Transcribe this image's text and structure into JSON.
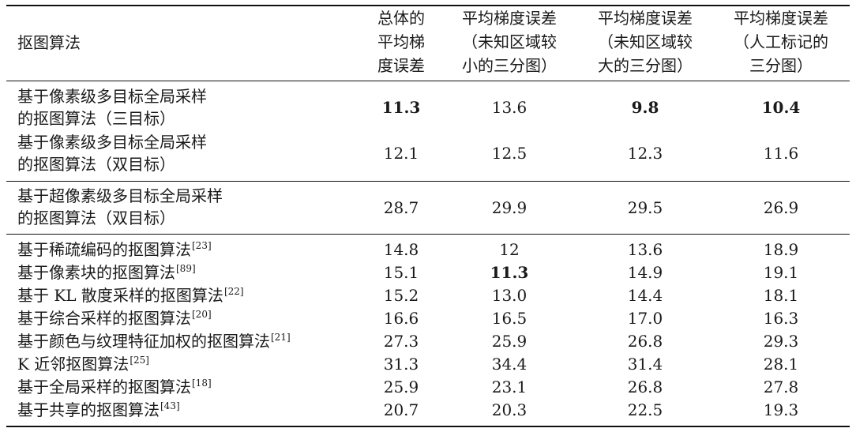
{
  "header": {
    "method": "抠图算法",
    "col1": [
      "总体的",
      "平均梯",
      "度误差"
    ],
    "col2": [
      "平均梯度误差",
      "（未知区域较",
      "小的三分图）"
    ],
    "col3": [
      "平均梯度误差",
      "（未知区域较",
      "大的三分图）"
    ],
    "col4": [
      "平均梯度误差",
      "（人工标记的",
      "三分图）"
    ]
  },
  "group1": [
    {
      "name": [
        "基于像素级多目标全局采样",
        "的抠图算法（三目标）"
      ],
      "v": [
        "11.3",
        "13.6",
        "9.8",
        "10.4"
      ]
    },
    {
      "name": [
        "基于像素级多目标全局采样",
        "的抠图算法（双目标）"
      ],
      "v": [
        "12.1",
        "12.5",
        "12.3",
        "11.6"
      ]
    }
  ],
  "group2": [
    {
      "name": [
        "基于超像素级多目标全局采样",
        "的抠图算法（双目标）"
      ],
      "v": [
        "28.7",
        "29.9",
        "29.5",
        "26.9"
      ]
    }
  ],
  "group3": [
    {
      "name": "基于稀疏编码的抠图算法",
      "ref": "[23]",
      "v": [
        "14.8",
        "12",
        "13.6",
        "18.9"
      ]
    },
    {
      "name": "基于像素块的抠图算法",
      "ref": "[89]",
      "v": [
        "15.1",
        "11.3",
        "14.9",
        "19.1"
      ]
    },
    {
      "name": "基于 KL 散度采样的抠图算法",
      "ref": "[22]",
      "v": [
        "15.2",
        "13.0",
        "14.4",
        "18.1"
      ]
    },
    {
      "name": "基于综合采样的抠图算法",
      "ref": "[20]",
      "v": [
        "16.6",
        "16.5",
        "17.0",
        "16.3"
      ]
    },
    {
      "name": "基于颜色与纹理特征加权的抠图算法",
      "ref": "[21]",
      "v": [
        "27.3",
        "25.9",
        "26.8",
        "29.3"
      ]
    },
    {
      "name": "K 近邻抠图算法",
      "ref": "[25]",
      "v": [
        "31.3",
        "34.4",
        "31.4",
        "28.1"
      ]
    },
    {
      "name": "基于全局采样的抠图算法",
      "ref": "[18]",
      "v": [
        "25.9",
        "23.1",
        "26.8",
        "27.8"
      ]
    },
    {
      "name": "基于共享的抠图算法",
      "ref": "[43]",
      "v": [
        "20.7",
        "20.3",
        "22.5",
        "19.3"
      ]
    }
  ]
}
